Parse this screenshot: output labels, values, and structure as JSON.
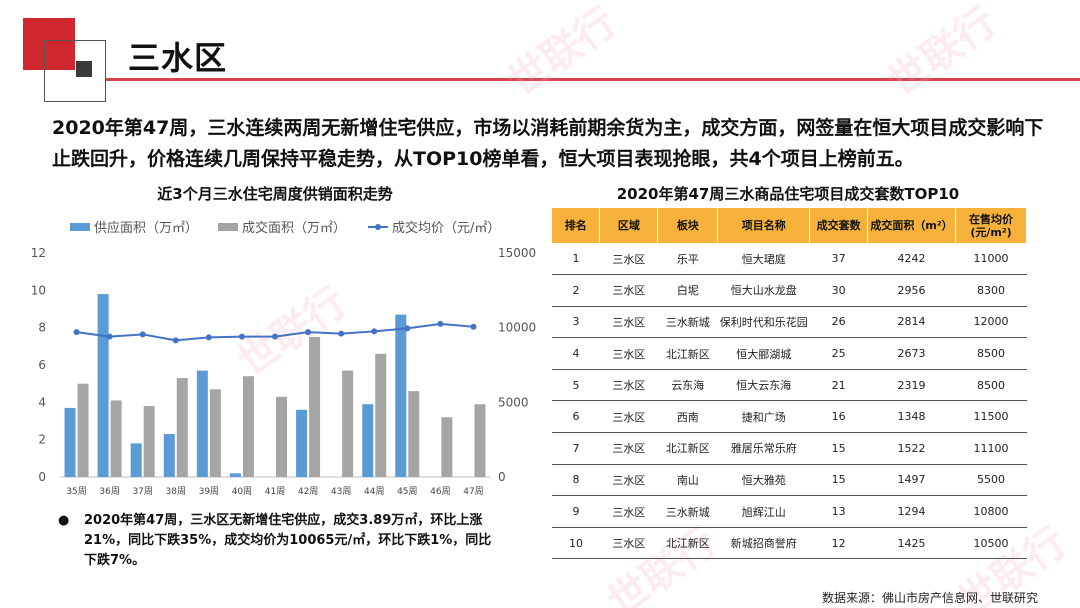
{
  "header": {
    "title": "三水区"
  },
  "summary": "2020年第47周，三水连续两周无新增住宅供应，市场以消耗前期余货为主，成交方面，网签量在恒大项目成交影响下止跌回升，价格连续几周保持平稳走势，从TOP10榜单看，恒大项目表现抢眼，共4个项目上榜前五。",
  "chart_data": {
    "type": "bar",
    "title": "近3个月三水住宅周度供销面积走势",
    "categories": [
      "35周",
      "36周",
      "37周",
      "38周",
      "39周",
      "40周",
      "41周",
      "42周",
      "43周",
      "44周",
      "45周",
      "46周",
      "47周"
    ],
    "series": [
      {
        "name": "供应面积（万㎡）",
        "type": "bar",
        "axis": "left",
        "values": [
          3.7,
          9.8,
          1.8,
          2.3,
          5.7,
          0.2,
          0,
          3.6,
          0,
          3.9,
          8.7,
          0,
          0
        ]
      },
      {
        "name": "成交面积（万㎡）",
        "type": "bar",
        "axis": "left",
        "values": [
          5.0,
          4.1,
          3.8,
          5.3,
          4.7,
          5.4,
          4.3,
          7.5,
          5.7,
          6.6,
          4.6,
          3.2,
          3.9
        ]
      },
      {
        "name": "成交均价（元/㎡）",
        "type": "line",
        "axis": "right",
        "values": [
          9700,
          9400,
          9550,
          9150,
          9350,
          9400,
          9400,
          9700,
          9600,
          9750,
          9950,
          10250,
          10065
        ]
      }
    ],
    "y_left": {
      "range": [
        0,
        12
      ],
      "ticks": [
        "0",
        "2",
        "4",
        "6",
        "8",
        "10",
        "12"
      ]
    },
    "y_right": {
      "range": [
        0,
        15000
      ],
      "ticks": [
        "0",
        "5000",
        "10000",
        "15000"
      ]
    },
    "legend_position": "top",
    "grid": false,
    "colors": {
      "supply": "#5b9bd5",
      "deal": "#a5a5a5",
      "price": "#4472c4"
    }
  },
  "bullet": {
    "symbol": "●",
    "text": "2020年第47周，三水区无新增住宅供应，成交3.89万㎡，环比上涨21%，同比下跌35%，成交均价为10065元/㎡，环比下跌1%，同比下跌7%。"
  },
  "table": {
    "title": "2020年第47周三水商品住宅项目成交套数TOP10",
    "header_color": "#f6b13b",
    "columns": [
      "排名",
      "区域",
      "板块",
      "项目名称",
      "成交套数",
      "成交面积（m²）",
      "在售均价(元/m²)"
    ],
    "rows": [
      [
        "1",
        "三水区",
        "乐平",
        "恒大珺庭",
        "37",
        "4242",
        "11000"
      ],
      [
        "2",
        "三水区",
        "白坭",
        "恒大山水龙盘",
        "30",
        "2956",
        "8300"
      ],
      [
        "3",
        "三水区",
        "三水新城",
        "保利时代和乐花园",
        "26",
        "2814",
        "12000"
      ],
      [
        "4",
        "三水区",
        "北江新区",
        "恒大郦湖城",
        "25",
        "2673",
        "8500"
      ],
      [
        "5",
        "三水区",
        "云东海",
        "恒大云东海",
        "21",
        "2319",
        "8500"
      ],
      [
        "6",
        "三水区",
        "西南",
        "捷和广场",
        "16",
        "1348",
        "11500"
      ],
      [
        "7",
        "三水区",
        "北江新区",
        "雅居乐常乐府",
        "15",
        "1522",
        "11100"
      ],
      [
        "8",
        "三水区",
        "南山",
        "恒大雅苑",
        "15",
        "1497",
        "5500"
      ],
      [
        "9",
        "三水区",
        "三水新城",
        "旭辉江山",
        "13",
        "1294",
        "10800"
      ],
      [
        "10",
        "三水区",
        "北江新区",
        "新城招商誉府",
        "12",
        "1425",
        "10500"
      ]
    ]
  },
  "footer": {
    "source": "数据来源：佛山市房产信息网、世联研究"
  },
  "watermark": {
    "text": "世联行"
  }
}
